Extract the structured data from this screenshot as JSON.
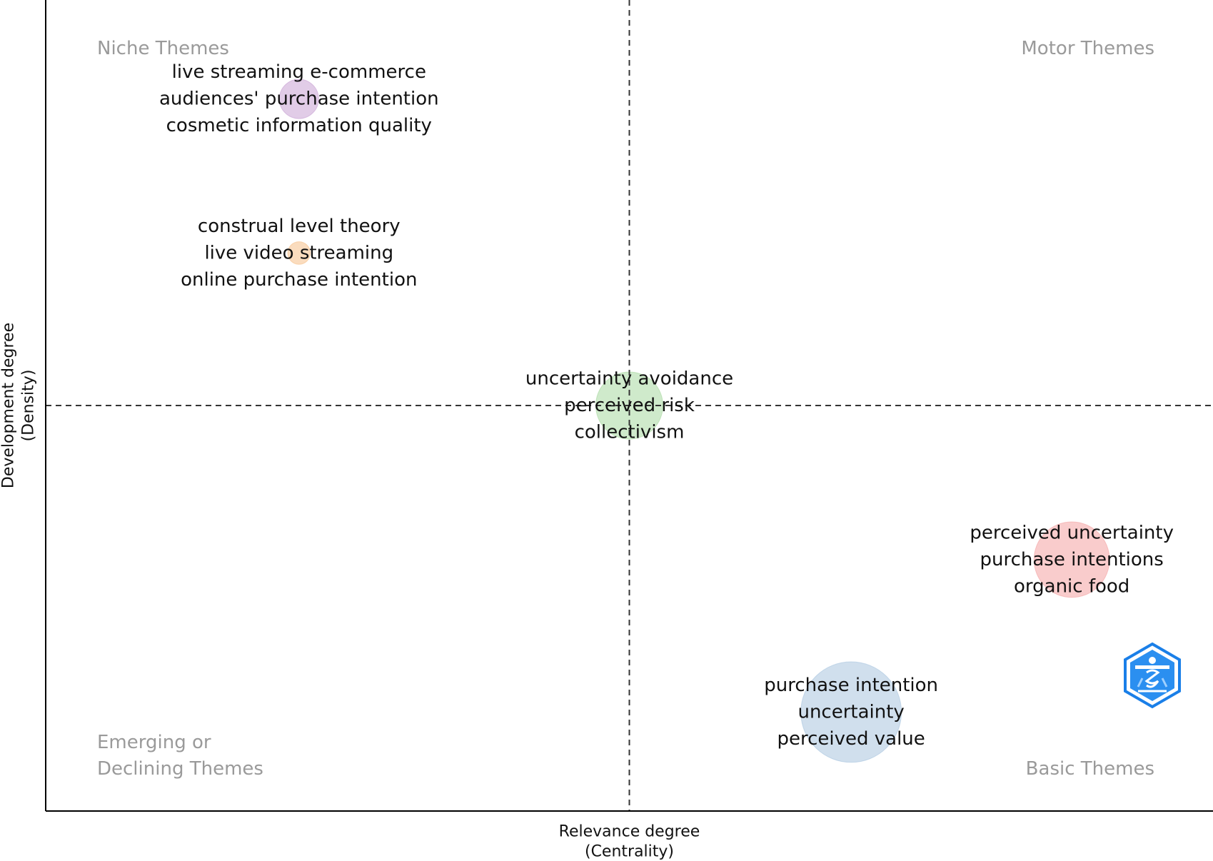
{
  "chart_data": {
    "type": "scatter",
    "title": "",
    "xlabel": "Relevance degree\n(Centrality)",
    "ylabel": "Development degree\n(Density)",
    "x_reference": "median",
    "y_reference": "median",
    "grid": false,
    "quadrants": {
      "top_left": [
        "Niche Themes"
      ],
      "top_right": [
        "Motor Themes"
      ],
      "bottom_left": [
        "Emerging or",
        "Declining Themes"
      ],
      "bottom_right": [
        "Basic Themes"
      ]
    },
    "clusters": [
      {
        "labels": [
          "live streaming e-commerce",
          "audiences' purchase intention",
          "cosmetic information quality"
        ],
        "x": 0.217,
        "y": 0.878,
        "size": 1.0,
        "color": "#c8a2d4"
      },
      {
        "labels": [
          "construal level theory",
          "live video streaming",
          "online purchase intention"
        ],
        "x": 0.217,
        "y": 0.688,
        "size": 0.4,
        "color": "#f6c089"
      },
      {
        "labels": [
          "uncertainty avoidance",
          "perceived risk",
          "collectivism"
        ],
        "x": 0.5,
        "y": 0.5,
        "size": 2.0,
        "color": "#a8d8a0"
      },
      {
        "labels": [
          "perceived uncertainty",
          "purchase intentions",
          "organic food"
        ],
        "x": 0.879,
        "y": 0.31,
        "size": 2.3,
        "color": "#f4a3a3"
      },
      {
        "labels": [
          "purchase intention",
          "uncertainty",
          "perceived value"
        ],
        "x": 0.69,
        "y": 0.122,
        "size": 3.2,
        "color": "#a9c4df"
      }
    ]
  },
  "colors": {
    "axis": "#000000",
    "reference_line": "#333333",
    "quadrant_text": "#9a9a9a",
    "watermark_blue": "#1a7fe8"
  },
  "watermark": {
    "icon": "hexagon-logo-icon"
  }
}
